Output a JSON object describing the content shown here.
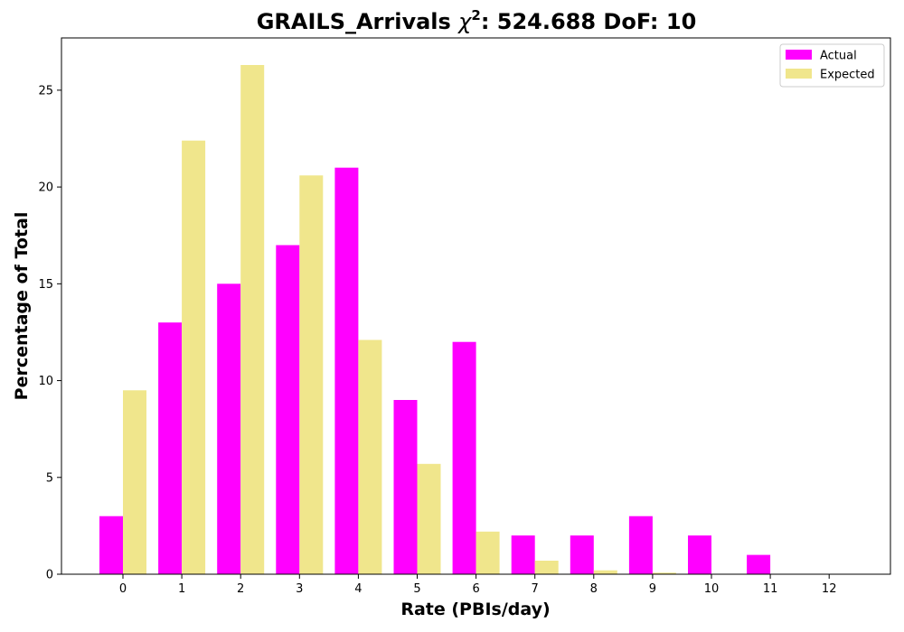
{
  "chart_data": {
    "type": "bar",
    "title_main": "GRAILS_Arrivals ",
    "title_chi": "χ",
    "title_sup": "2",
    "title_rest": ": 524.688 DoF: 10",
    "xlabel": "Rate (PBIs/day)",
    "ylabel": "Percentage of Total",
    "categories": [
      "0",
      "1",
      "2",
      "3",
      "4",
      "5",
      "6",
      "7",
      "8",
      "9",
      "10",
      "11",
      "12"
    ],
    "series": [
      {
        "name": "Actual",
        "color": "#ff00ff",
        "values": [
          3,
          13,
          15,
          17,
          21,
          9,
          12,
          2,
          2,
          3,
          2,
          1,
          0
        ]
      },
      {
        "name": "Expected",
        "color": "#f0e68c",
        "values": [
          9.5,
          22.4,
          26.3,
          20.6,
          12.1,
          5.7,
          2.2,
          0.7,
          0.2,
          0.08,
          0.02,
          0.0,
          0.0
        ]
      }
    ],
    "ylim": [
      0,
      27.7
    ],
    "yticks": [
      0,
      5,
      10,
      15,
      20,
      25
    ],
    "legend": "top-right",
    "grid": false
  }
}
